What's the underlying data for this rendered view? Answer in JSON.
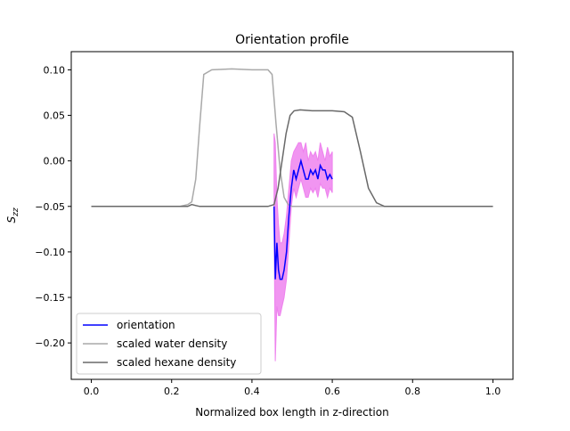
{
  "chart_data": {
    "type": "line",
    "title": "Orientation profile",
    "xlabel": "Normalized box length in z-direction",
    "ylabel": "S_zz",
    "xlim": [
      -0.05,
      1.05
    ],
    "ylim": [
      -0.24,
      0.12
    ],
    "xticks": [
      0.0,
      0.2,
      0.4,
      0.6,
      0.8,
      1.0
    ],
    "xtick_labels": [
      "0.0",
      "0.2",
      "0.4",
      "0.6",
      "0.8",
      "1.0"
    ],
    "yticks": [
      0.1,
      0.05,
      0.0,
      -0.05,
      -0.1,
      -0.15,
      -0.2
    ],
    "ytick_labels": [
      "0.10",
      "0.05",
      "0.00",
      "−0.05",
      "−0.10",
      "−0.15",
      "−0.20"
    ],
    "grid": false,
    "legend_position": "lower-left",
    "series": [
      {
        "name": "orientation",
        "color": "#0000ff",
        "error_band_color": "#ee82ee",
        "x": [
          0.455,
          0.458,
          0.462,
          0.466,
          0.47,
          0.475,
          0.48,
          0.486,
          0.492,
          0.498,
          0.504,
          0.51,
          0.516,
          0.522,
          0.528,
          0.534,
          0.54,
          0.546,
          0.552,
          0.558,
          0.564,
          0.57,
          0.576,
          0.582,
          0.588,
          0.594,
          0.6
        ],
        "y": [
          -0.05,
          -0.13,
          -0.09,
          -0.12,
          -0.13,
          -0.13,
          -0.12,
          -0.1,
          -0.06,
          -0.03,
          -0.01,
          -0.02,
          -0.01,
          0.0,
          -0.01,
          -0.02,
          -0.02,
          -0.01,
          -0.015,
          -0.01,
          -0.02,
          -0.005,
          -0.01,
          -0.01,
          -0.02,
          -0.015,
          -0.02
        ],
        "lower": [
          -0.07,
          -0.22,
          -0.16,
          -0.17,
          -0.17,
          -0.16,
          -0.15,
          -0.13,
          -0.09,
          -0.05,
          -0.03,
          -0.04,
          -0.03,
          -0.02,
          -0.03,
          -0.04,
          -0.04,
          -0.03,
          -0.035,
          -0.03,
          -0.04,
          -0.025,
          -0.03,
          -0.03,
          -0.04,
          -0.03,
          -0.035
        ],
        "upper": [
          0.03,
          0.02,
          -0.04,
          -0.07,
          -0.09,
          -0.09,
          -0.08,
          -0.06,
          -0.03,
          0.0,
          0.01,
          0.015,
          0.02,
          0.02,
          0.01,
          0.02,
          0.0,
          0.01,
          0.005,
          0.01,
          0.0,
          0.02,
          0.01,
          0.0,
          0.015,
          0.005,
          0.01
        ]
      },
      {
        "name": "scaled water density",
        "color": "#a9a9a9",
        "x": [
          0.0,
          0.2,
          0.22,
          0.24,
          0.25,
          0.26,
          0.27,
          0.28,
          0.3,
          0.35,
          0.4,
          0.44,
          0.45,
          0.46,
          0.47,
          0.48,
          0.49,
          0.5,
          0.52,
          0.6,
          0.8,
          1.0
        ],
        "y": [
          -0.05,
          -0.05,
          -0.05,
          -0.048,
          -0.045,
          -0.02,
          0.04,
          0.095,
          0.1,
          0.101,
          0.1,
          0.1,
          0.095,
          0.04,
          -0.01,
          -0.04,
          -0.048,
          -0.05,
          -0.05,
          -0.05,
          -0.05,
          -0.05
        ]
      },
      {
        "name": "scaled hexane density",
        "color": "#696969",
        "x": [
          0.0,
          0.2,
          0.24,
          0.25,
          0.26,
          0.27,
          0.3,
          0.4,
          0.44,
          0.455,
          0.465,
          0.475,
          0.485,
          0.495,
          0.505,
          0.52,
          0.55,
          0.6,
          0.63,
          0.65,
          0.67,
          0.69,
          0.71,
          0.73,
          0.75,
          0.8,
          1.0
        ],
        "y": [
          -0.05,
          -0.05,
          -0.05,
          -0.048,
          -0.049,
          -0.05,
          -0.05,
          -0.05,
          -0.05,
          -0.048,
          -0.03,
          0.0,
          0.03,
          0.05,
          0.055,
          0.056,
          0.055,
          0.055,
          0.054,
          0.048,
          0.01,
          -0.03,
          -0.046,
          -0.05,
          -0.05,
          -0.05,
          -0.05
        ]
      }
    ]
  }
}
